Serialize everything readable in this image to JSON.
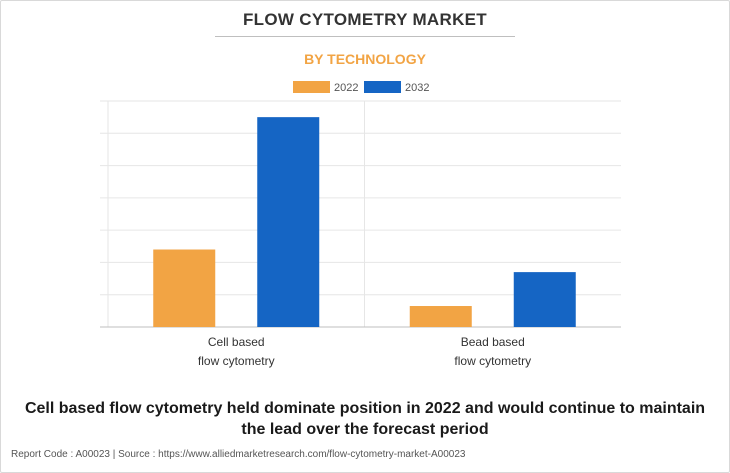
{
  "chart_data": {
    "type": "bar",
    "title": "FLOW CYTOMETRY MARKET",
    "subtitle": "BY TECHNOLOGY",
    "categories": [
      [
        "Cell based",
        "flow cytometry"
      ],
      [
        "Bead based",
        "flow cytometry"
      ]
    ],
    "series": [
      {
        "name": "2022",
        "values": [
          2.4,
          0.65
        ],
        "color": "#f2a444"
      },
      {
        "name": "2032",
        "values": [
          6.5,
          1.7
        ],
        "color": "#1565c4"
      }
    ],
    "ylim": [
      0,
      7
    ],
    "y_gridlines": 7,
    "grid": true,
    "legend_position": "top-center",
    "xlabel": "",
    "ylabel": ""
  },
  "caption_line1": "Cell based flow cytometry held dominate position in 2022 and would continue to maintain",
  "caption_line2": "the lead over the forecast period",
  "footer": "Report Code : A00023  |  Source : https://www.alliedmarketresearch.com/flow-cytometry-market-A00023",
  "colors": {
    "accent": "#f2a444",
    "primary": "#1565c4"
  }
}
